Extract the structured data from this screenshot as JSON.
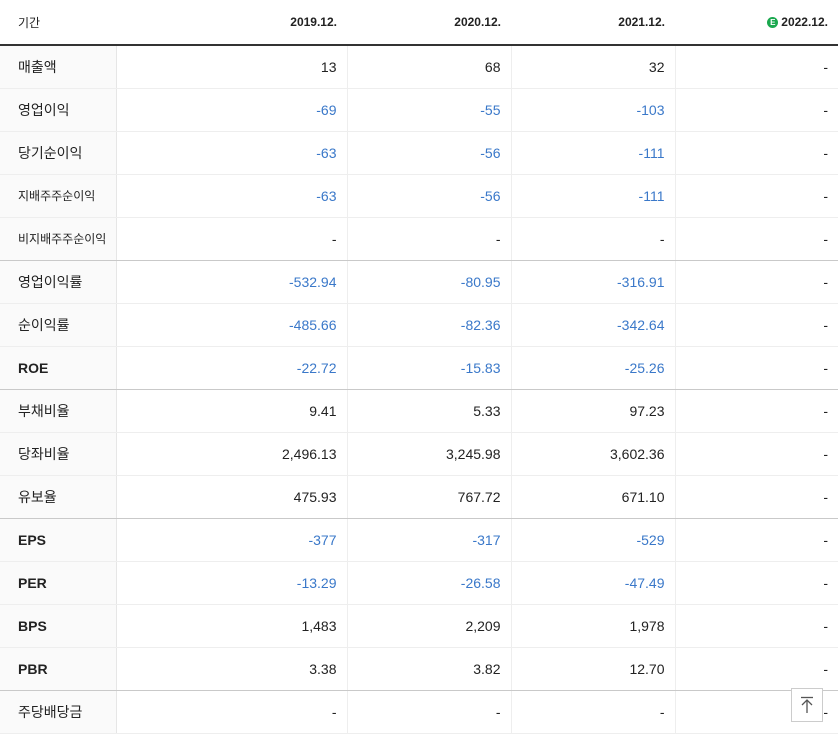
{
  "header": {
    "period_label": "기간",
    "years": [
      "2019.12.",
      "2020.12.",
      "2021.12.",
      "2022.12."
    ],
    "estimate_badge": "E"
  },
  "rows": [
    {
      "label": "매출액",
      "values": [
        "13",
        "68",
        "32",
        "-"
      ],
      "neg": [
        false,
        false,
        false,
        false
      ]
    },
    {
      "label": "영업이익",
      "values": [
        "-69",
        "-55",
        "-103",
        "-"
      ],
      "neg": [
        true,
        true,
        true,
        false
      ]
    },
    {
      "label": "당기순이익",
      "values": [
        "-63",
        "-56",
        "-111",
        "-"
      ],
      "neg": [
        true,
        true,
        true,
        false
      ]
    },
    {
      "label": "지배주주순이익",
      "values": [
        "-63",
        "-56",
        "-111",
        "-"
      ],
      "neg": [
        true,
        true,
        true,
        false
      ]
    },
    {
      "label": "비지배주주순이익",
      "values": [
        "-",
        "-",
        "-",
        "-"
      ],
      "neg": [
        false,
        false,
        false,
        false
      ]
    },
    {
      "label": "영업이익률",
      "values": [
        "-532.94",
        "-80.95",
        "-316.91",
        "-"
      ],
      "neg": [
        true,
        true,
        true,
        false
      ]
    },
    {
      "label": "순이익률",
      "values": [
        "-485.66",
        "-82.36",
        "-342.64",
        "-"
      ],
      "neg": [
        true,
        true,
        true,
        false
      ]
    },
    {
      "label": "ROE",
      "values": [
        "-22.72",
        "-15.83",
        "-25.26",
        "-"
      ],
      "neg": [
        true,
        true,
        true,
        false
      ]
    },
    {
      "label": "부채비율",
      "values": [
        "9.41",
        "5.33",
        "97.23",
        "-"
      ],
      "neg": [
        false,
        false,
        false,
        false
      ]
    },
    {
      "label": "당좌비율",
      "values": [
        "2,496.13",
        "3,245.98",
        "3,602.36",
        "-"
      ],
      "neg": [
        false,
        false,
        false,
        false
      ]
    },
    {
      "label": "유보율",
      "values": [
        "475.93",
        "767.72",
        "671.10",
        "-"
      ],
      "neg": [
        false,
        false,
        false,
        false
      ]
    },
    {
      "label": "EPS",
      "values": [
        "-377",
        "-317",
        "-529",
        "-"
      ],
      "neg": [
        true,
        true,
        true,
        false
      ]
    },
    {
      "label": "PER",
      "values": [
        "-13.29",
        "-26.58",
        "-47.49",
        "-"
      ],
      "neg": [
        true,
        true,
        true,
        false
      ]
    },
    {
      "label": "BPS",
      "values": [
        "1,483",
        "2,209",
        "1,978",
        "-"
      ],
      "neg": [
        false,
        false,
        false,
        false
      ]
    },
    {
      "label": "PBR",
      "values": [
        "3.38",
        "3.82",
        "12.70",
        "-"
      ],
      "neg": [
        false,
        false,
        false,
        false
      ]
    },
    {
      "label": "주당배당금",
      "values": [
        "-",
        "-",
        "-",
        "-"
      ],
      "neg": [
        false,
        false,
        false,
        false
      ]
    }
  ],
  "colors": {
    "negative": "#3a78c9",
    "estimate_badge": "#1aa84e"
  },
  "icons": {
    "scroll_top": "arrow-up-to-top-icon"
  }
}
